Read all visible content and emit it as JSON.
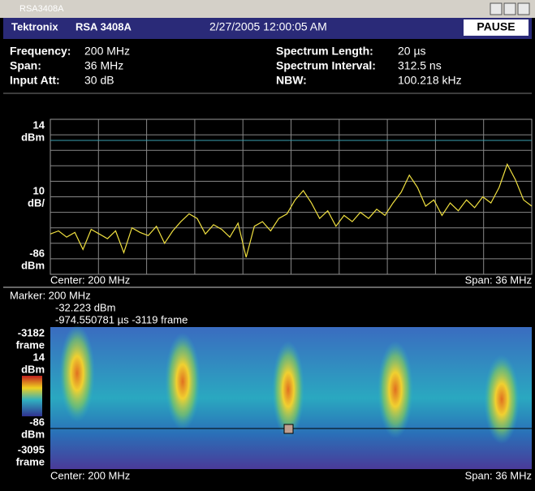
{
  "window": {
    "title": "RSA3408A"
  },
  "header": {
    "brand": "Tektronix",
    "model": "RSA 3408A",
    "datetime": "2/27/2005 12:00:05 AM",
    "button": "PAUSE"
  },
  "settings": {
    "left": [
      [
        "Frequency:",
        "200 MHz"
      ],
      [
        "Span:",
        "36 MHz"
      ],
      [
        "Input Att:",
        "30 dB"
      ]
    ],
    "right": [
      [
        "Spectrum Length:",
        "20 µs"
      ],
      [
        "Spectrum Interval:",
        "312.5 ns"
      ],
      [
        "NBW:",
        "100.218 kHz"
      ]
    ]
  },
  "spectrum": {
    "ylim": [
      -86,
      14
    ],
    "top_unit": "dBm",
    "div": 10,
    "div_unit": "dB/",
    "bottom_unit": "dBm",
    "center": "Center: 200 MHz",
    "span": "Span: 36 MHz",
    "trace": [
      -60,
      -58,
      -62,
      -59,
      -70,
      -57,
      -60,
      -63,
      -58,
      -72,
      -56,
      -59,
      -61,
      -55,
      -66,
      -58,
      -52,
      -47,
      -50,
      -60,
      -54,
      -57,
      -62,
      -53,
      -75,
      -55,
      -52,
      -58,
      -50,
      -47,
      -38,
      -32,
      -40,
      -50,
      -45,
      -55,
      -48,
      -52,
      -46,
      -50,
      -44,
      -48,
      -40,
      -33,
      -22,
      -30,
      -42,
      -38,
      -48,
      -40,
      -45,
      -38,
      -43,
      -36,
      -40,
      -30,
      -15,
      -25,
      -38,
      -42
    ]
  },
  "spectrogram": {
    "marker": "Marker: 200 MHz",
    "marker_level": "-32.223 dBm",
    "marker_time": "-974.550781 µs  -3119 frame",
    "top_frame": "-3182",
    "top_frame_unit": "frame",
    "color_top": "14",
    "color_top_unit": "dBm",
    "color_bottom": "-86",
    "color_bottom_unit": "dBm",
    "bottom_frame": "-3095",
    "bottom_frame_unit": "frame",
    "center": "Center: 200 MHz",
    "span": "Span: 36 MHz"
  }
}
